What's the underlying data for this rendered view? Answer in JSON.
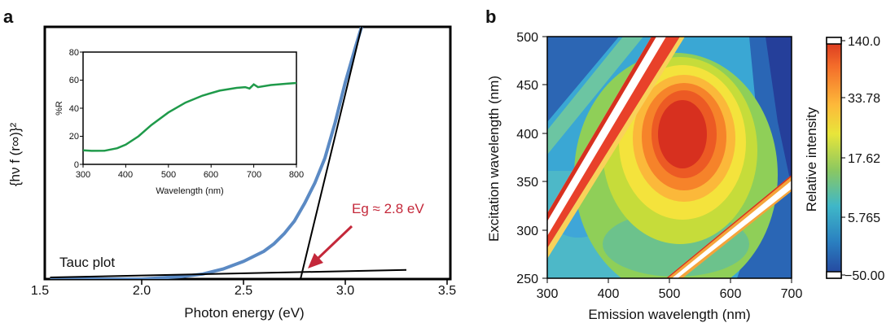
{
  "panel_a": {
    "letter": "a",
    "xlabel": "Photon energy (eV)",
    "ylabel": "{hν f (r∞)}²",
    "xticks": [
      "1.5",
      "2.0",
      "2.5",
      "3.0",
      "3.5"
    ],
    "annotation_tauc": "Tauc plot",
    "annotation_eg": "Eg ≈ 2.8 eV",
    "inset": {
      "xlabel": "Wavelength (nm)",
      "ylabel": "%R",
      "xticks": [
        "300",
        "400",
        "500",
        "600",
        "700",
        "800"
      ],
      "yticks": [
        "0",
        "20",
        "40",
        "60",
        "80"
      ]
    }
  },
  "panel_b": {
    "letter": "b",
    "xlabel": "Emission wavelength (nm)",
    "ylabel": "Excitation wavelength (nm)",
    "xticks": [
      "300",
      "400",
      "500",
      "600",
      "700"
    ],
    "yticks": [
      "250",
      "300",
      "350",
      "400",
      "450",
      "500"
    ],
    "colorbar_label": "Relative intensity",
    "colorbar_ticks": [
      "140.0",
      "33.78",
      "17.62",
      "5.765",
      "−50.00"
    ]
  },
  "chart_data": [
    {
      "type": "line",
      "xlabel": "Photon energy (eV)",
      "ylabel": "{hν f (r∞)}²",
      "xlim": [
        1.5,
        3.5
      ],
      "series": [
        {
          "x": [
            1.55,
            1.8,
            2.0,
            2.2,
            2.3,
            2.4,
            2.5,
            2.6,
            2.65,
            2.7,
            2.75,
            2.8,
            2.85,
            2.9,
            2.95,
            3.0,
            3.05,
            3.08
          ],
          "values": [
            0.0,
            0.0,
            0.0,
            0.01,
            0.02,
            0.04,
            0.07,
            0.11,
            0.14,
            0.18,
            0.23,
            0.3,
            0.38,
            0.48,
            0.62,
            0.78,
            0.92,
            1.0
          ]
        }
      ],
      "fit_lines": [
        {
          "x": [
            2.78,
            3.08
          ],
          "values": [
            0.0,
            1.0
          ]
        },
        {
          "x": [
            1.55,
            3.3
          ],
          "values": [
            0.0,
            0.03
          ]
        }
      ],
      "annotations": [
        "Tauc plot",
        "Eg ≈ 2.8 eV"
      ]
    },
    {
      "type": "line",
      "xlabel": "Wavelength (nm)",
      "ylabel": "%R",
      "xlim": [
        300,
        800
      ],
      "ylim": [
        0,
        80
      ],
      "series": [
        {
          "x": [
            300,
            320,
            350,
            380,
            400,
            430,
            460,
            500,
            540,
            580,
            620,
            660,
            680,
            690,
            700,
            710,
            740,
            780,
            800
          ],
          "values": [
            10,
            9.6,
            9.7,
            11.5,
            14,
            20,
            28,
            37,
            44,
            49,
            52.5,
            54.5,
            55,
            54,
            57,
            55,
            56.5,
            57.5,
            58
          ]
        }
      ]
    },
    {
      "type": "heatmap",
      "xlabel": "Emission wavelength (nm)",
      "ylabel": "Excitation wavelength (nm)",
      "xlim": [
        300,
        700
      ],
      "ylim": [
        250,
        500
      ],
      "colorbar": {
        "label": "Relative intensity",
        "ticks": [
          140.0,
          33.78,
          17.62,
          5.765,
          -50.0
        ]
      },
      "peak": {
        "emission": 510,
        "excitation": 385
      }
    }
  ]
}
